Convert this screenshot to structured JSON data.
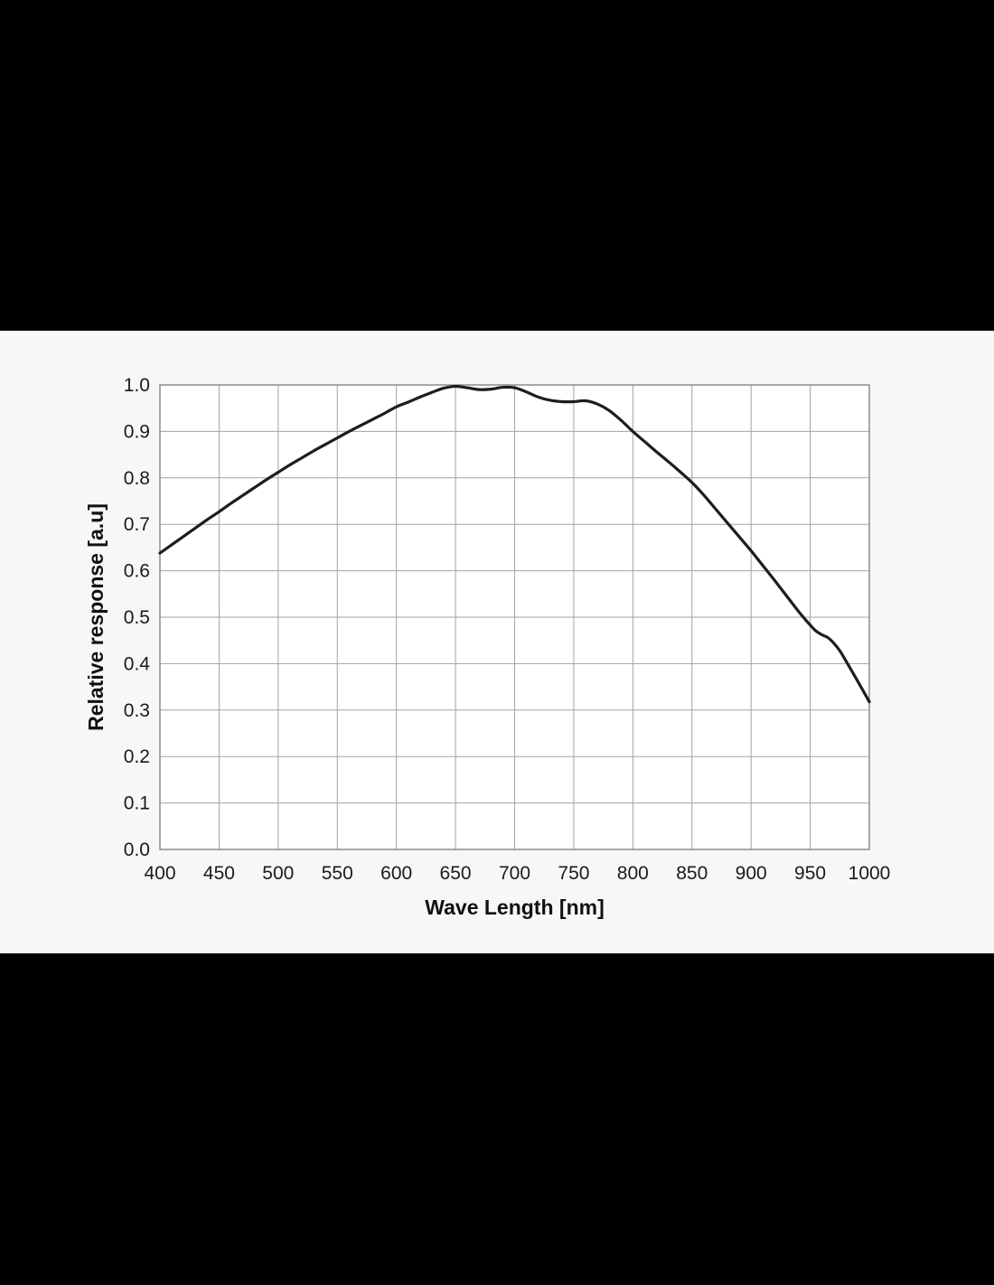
{
  "colors": {
    "letterbox": "#000000",
    "panel_background": "#f7f7f7",
    "plot_background": "#ffffff",
    "gridline": "#a3a3a3",
    "frame": "#848484",
    "curve": "#1d1d1d",
    "text": "#1a1a1a"
  },
  "chart_data": {
    "type": "line",
    "title": "",
    "xlabel": "Wave Length [nm]",
    "ylabel": "Relative response [a.u]",
    "xlim": [
      400,
      1000
    ],
    "ylim": [
      0.0,
      1.0
    ],
    "grid": true,
    "legend": "none",
    "x_ticks": [
      400,
      450,
      500,
      550,
      600,
      650,
      700,
      750,
      800,
      850,
      900,
      950,
      1000
    ],
    "y_ticks": [
      {
        "value": 0.0,
        "label": "0.0"
      },
      {
        "value": 0.1,
        "label": "0.1"
      },
      {
        "value": 0.2,
        "label": "0.2"
      },
      {
        "value": 0.3,
        "label": "0.3"
      },
      {
        "value": 0.4,
        "label": "0.4"
      },
      {
        "value": 0.5,
        "label": "0.5"
      },
      {
        "value": 0.6,
        "label": "0.6"
      },
      {
        "value": 0.7,
        "label": "0.7"
      },
      {
        "value": 0.8,
        "label": "0.8"
      },
      {
        "value": 0.9,
        "label": "0.9"
      },
      {
        "value": 1.0,
        "label": "1.0"
      }
    ],
    "series": [
      {
        "name": "relative-response",
        "x": [
          400,
          410,
          420,
          430,
          440,
          450,
          460,
          470,
          480,
          490,
          500,
          510,
          520,
          530,
          540,
          550,
          560,
          570,
          580,
          590,
          600,
          610,
          620,
          630,
          640,
          650,
          660,
          670,
          680,
          690,
          700,
          710,
          720,
          730,
          740,
          750,
          760,
          770,
          780,
          790,
          800,
          810,
          820,
          830,
          840,
          850,
          860,
          870,
          880,
          890,
          900,
          910,
          920,
          930,
          940,
          950,
          955,
          960,
          965,
          970,
          975,
          980,
          990,
          1000
        ],
        "y": [
          0.638,
          0.656,
          0.674,
          0.692,
          0.71,
          0.727,
          0.745,
          0.762,
          0.779,
          0.796,
          0.812,
          0.828,
          0.843,
          0.858,
          0.872,
          0.886,
          0.9,
          0.913,
          0.926,
          0.939,
          0.953,
          0.963,
          0.974,
          0.984,
          0.993,
          0.997,
          0.994,
          0.99,
          0.991,
          0.995,
          0.994,
          0.985,
          0.974,
          0.967,
          0.964,
          0.964,
          0.966,
          0.959,
          0.945,
          0.924,
          0.9,
          0.878,
          0.856,
          0.835,
          0.813,
          0.79,
          0.763,
          0.733,
          0.703,
          0.673,
          0.643,
          0.611,
          0.579,
          0.546,
          0.513,
          0.483,
          0.47,
          0.462,
          0.456,
          0.444,
          0.428,
          0.407,
          0.363,
          0.318
        ]
      }
    ]
  }
}
